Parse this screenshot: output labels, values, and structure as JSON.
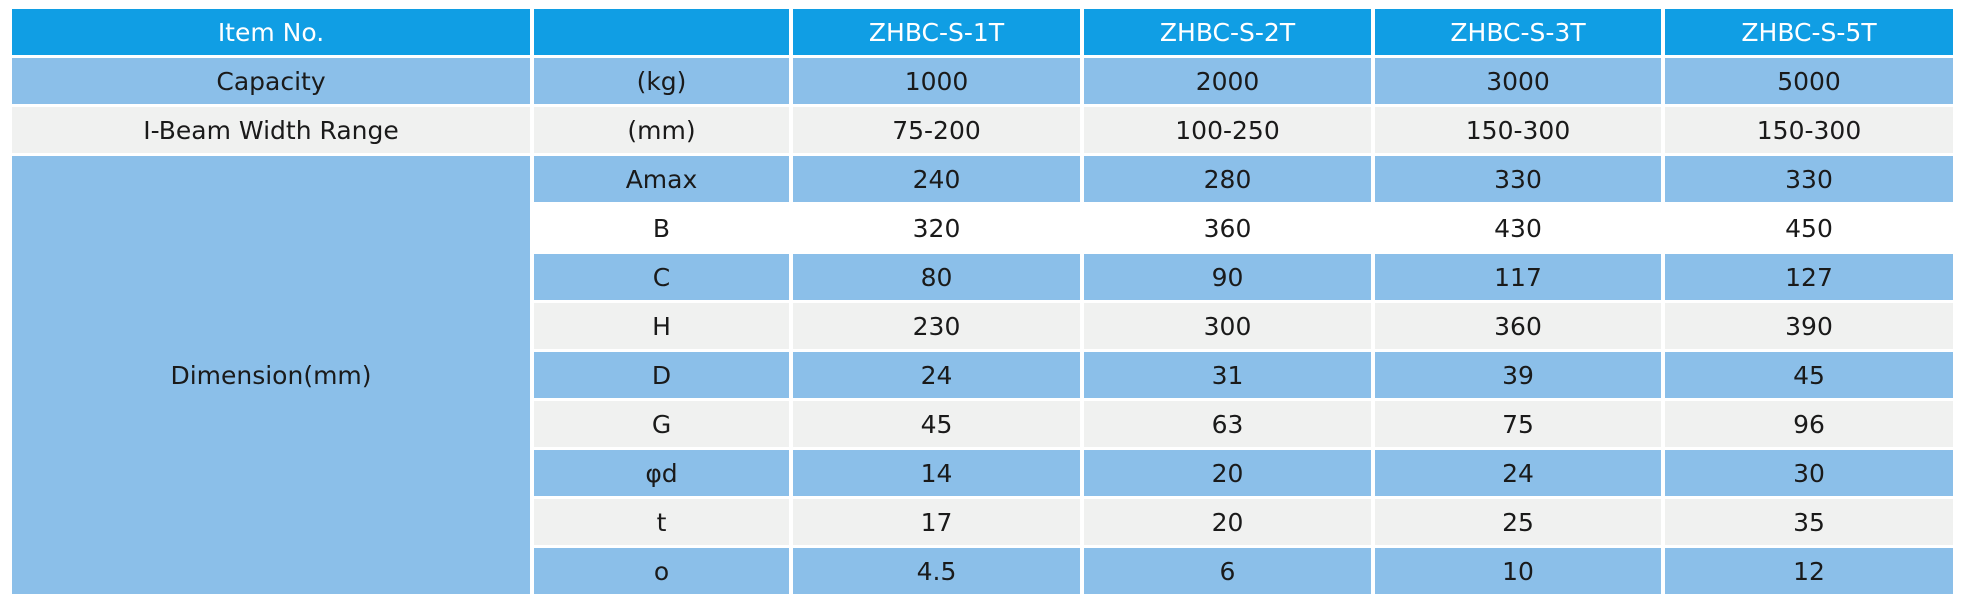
{
  "header": {
    "item_no": "Item No.",
    "unit": "",
    "models": [
      "ZHBC-S-1T",
      "ZHBC-S-2T",
      "ZHBC-S-3T",
      "ZHBC-S-5T"
    ]
  },
  "capacity": {
    "label": "Capacity",
    "unit": "(kg)",
    "values": [
      "1000",
      "2000",
      "3000",
      "5000"
    ]
  },
  "beam_width": {
    "label": "I-Beam Width Range",
    "unit": "(mm)",
    "values": [
      "75-200",
      "100-250",
      "150-300",
      "150-300"
    ]
  },
  "dimension": {
    "label": "Dimension(mm)",
    "rows": [
      {
        "param": "Amax",
        "values": [
          "240",
          "280",
          "330",
          "330"
        ]
      },
      {
        "param": "B",
        "values": [
          "320",
          "360",
          "430",
          "450"
        ]
      },
      {
        "param": "C",
        "values": [
          "80",
          "90",
          "117",
          "127"
        ]
      },
      {
        "param": "H",
        "values": [
          "230",
          "300",
          "360",
          "390"
        ]
      },
      {
        "param": "D",
        "values": [
          "24",
          "31",
          "39",
          "45"
        ]
      },
      {
        "param": "G",
        "values": [
          "45",
          "63",
          "75",
          "96"
        ]
      },
      {
        "param": "φd",
        "values": [
          "14",
          "20",
          "24",
          "30"
        ]
      },
      {
        "param": "t",
        "values": [
          "17",
          "20",
          "25",
          "35"
        ]
      },
      {
        "param": "o",
        "values": [
          "4.5",
          "6",
          "10",
          "12"
        ]
      }
    ]
  },
  "colors": {
    "header_bg": "#109ee4",
    "blue_row": "#8bbfe9",
    "grey_row": "#f0f1f0",
    "text": "#1a1a1a"
  }
}
